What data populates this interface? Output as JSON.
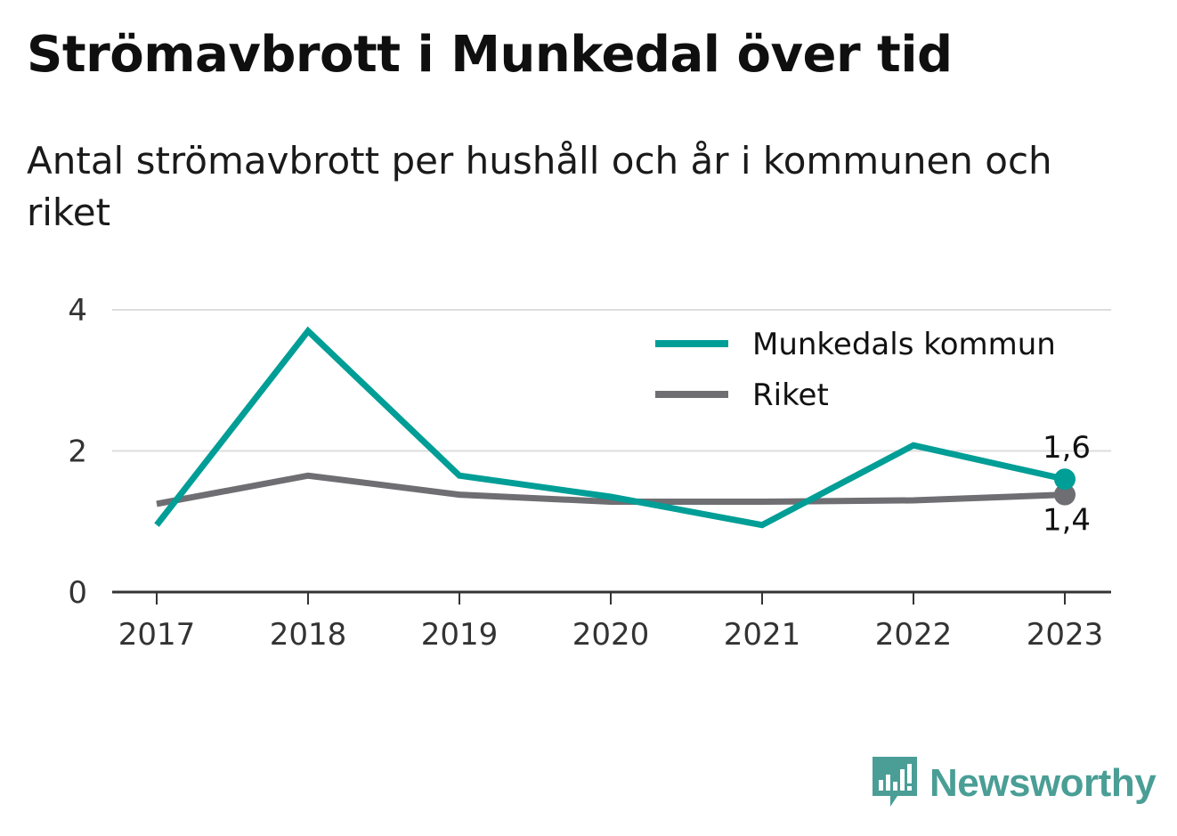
{
  "title": "Strömavbrott i Munkedal över tid",
  "subtitle": "Antal strömavbrott per hushåll och år i kommunen och riket",
  "brand": {
    "name": "Newsworthy",
    "icon": "bar-chart-speech-bubble-icon",
    "color": "#4a9e96"
  },
  "chart_data": {
    "type": "line",
    "x": [
      "2017",
      "2018",
      "2019",
      "2020",
      "2021",
      "2022",
      "2023"
    ],
    "ylim": [
      0,
      4
    ],
    "yticks": [
      0,
      2,
      4
    ],
    "grid": true,
    "legend_position": "top-right",
    "series": [
      {
        "name": "Munkedals kommun",
        "color": "#009e96",
        "values": [
          0.95,
          3.7,
          1.65,
          1.35,
          0.95,
          2.08,
          1.6
        ],
        "end_label": "1,6"
      },
      {
        "name": "Riket",
        "color": "#6e6e73",
        "values": [
          1.25,
          1.65,
          1.38,
          1.28,
          1.28,
          1.3,
          1.38
        ],
        "end_label": "1,4"
      }
    ]
  }
}
